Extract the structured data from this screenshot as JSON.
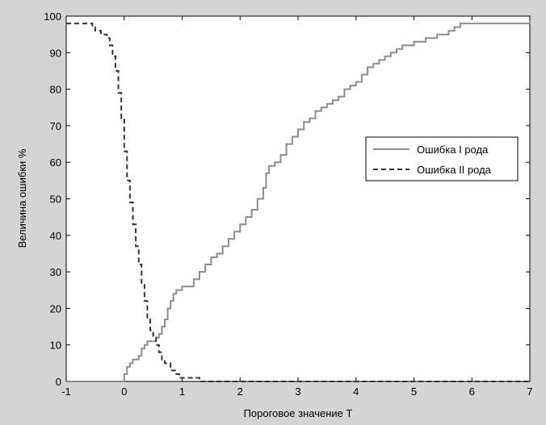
{
  "chart_data": {
    "type": "line",
    "title": "",
    "xlabel": "Пороговое значение T",
    "ylabel": "Величина ошибки %",
    "xlim": [
      -1,
      7
    ],
    "ylim": [
      0,
      100
    ],
    "xticks": [
      -1,
      0,
      1,
      2,
      3,
      4,
      5,
      6,
      7
    ],
    "yticks": [
      0,
      10,
      20,
      30,
      40,
      50,
      60,
      70,
      80,
      90,
      100
    ],
    "grid": false,
    "legend_position": "right",
    "series": [
      {
        "name": "Ошибка I рода",
        "color": "#8c8c8c",
        "dash": "solid",
        "x": [
          -1,
          -0.05,
          0.0,
          0.05,
          0.1,
          0.15,
          0.25,
          0.3,
          0.35,
          0.4,
          0.45,
          0.5,
          0.55,
          0.6,
          0.65,
          0.7,
          0.75,
          0.8,
          0.85,
          0.9,
          1.0,
          1.1,
          1.2,
          1.3,
          1.4,
          1.5,
          1.6,
          1.7,
          1.8,
          1.9,
          2.0,
          2.1,
          2.2,
          2.3,
          2.4,
          2.45,
          2.5,
          2.6,
          2.7,
          2.8,
          2.9,
          3.0,
          3.1,
          3.2,
          3.3,
          3.4,
          3.5,
          3.6,
          3.7,
          3.8,
          3.9,
          4.0,
          4.1,
          4.2,
          4.3,
          4.4,
          4.5,
          4.6,
          4.7,
          4.8,
          4.9,
          5.0,
          5.2,
          5.4,
          5.6,
          5.7,
          5.8,
          6.0,
          6.5,
          6.9,
          7.0
        ],
        "y": [
          0,
          0,
          2,
          4,
          5,
          6,
          7,
          9,
          10,
          11,
          11,
          11,
          12,
          13,
          15,
          17,
          20,
          22,
          24,
          25,
          26,
          26,
          28,
          30,
          32,
          34,
          35,
          37,
          39,
          41,
          43,
          45,
          47,
          50,
          53,
          57,
          59,
          60,
          62,
          65,
          67,
          69,
          71,
          72,
          74,
          75,
          76,
          77,
          78,
          80,
          81,
          82,
          84,
          86,
          87,
          88,
          89,
          90,
          91,
          92,
          92,
          93,
          94,
          95,
          96,
          97,
          98,
          98,
          98,
          98,
          99
        ]
      },
      {
        "name": "Ошибка II рода",
        "color": "#333333",
        "dash": "dashed",
        "x": [
          -1,
          -0.6,
          -0.55,
          -0.5,
          -0.4,
          -0.3,
          -0.25,
          -0.2,
          -0.15,
          -0.1,
          -0.05,
          0.0,
          0.05,
          0.1,
          0.15,
          0.2,
          0.25,
          0.3,
          0.35,
          0.4,
          0.45,
          0.5,
          0.55,
          0.6,
          0.65,
          0.7,
          0.8,
          0.9,
          0.95,
          1.0,
          1.1,
          1.2,
          1.25,
          1.3,
          1.5,
          7.0
        ],
        "y": [
          98,
          98,
          97,
          96,
          95,
          94,
          92,
          89,
          85,
          79,
          72,
          63,
          55,
          49,
          43,
          37,
          32,
          27,
          22,
          17,
          14,
          12,
          10,
          8,
          6,
          5,
          3,
          2,
          1,
          1,
          1,
          1,
          1,
          0,
          0,
          0
        ]
      }
    ]
  }
}
